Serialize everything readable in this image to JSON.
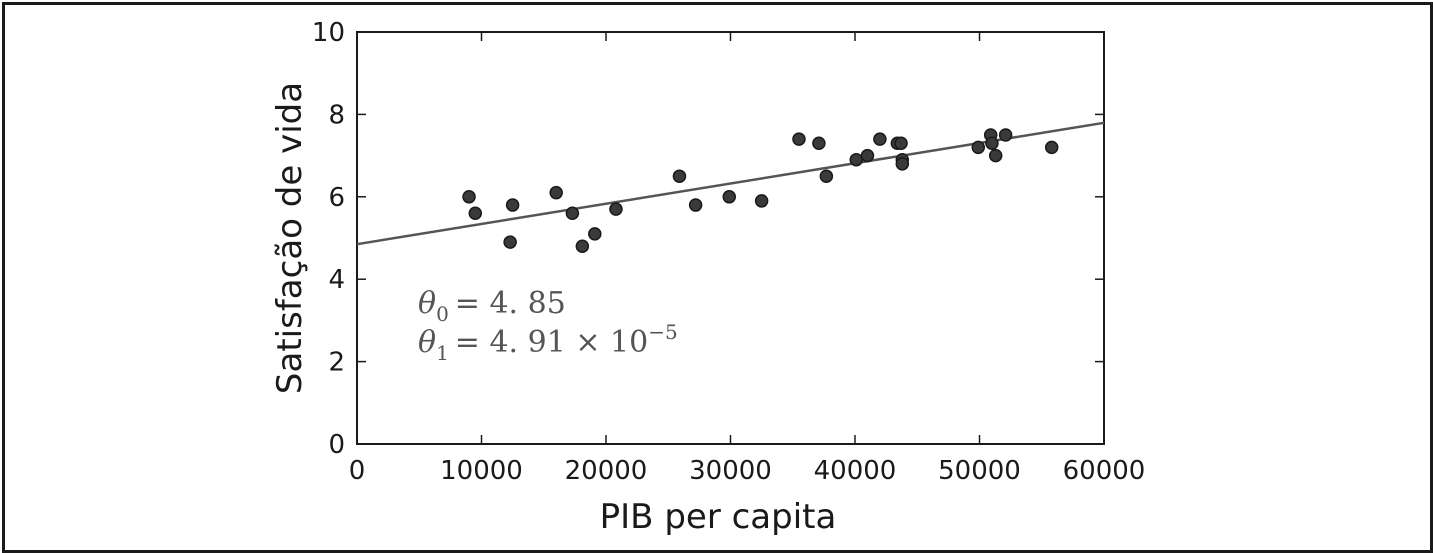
{
  "chart_data": {
    "type": "scatter",
    "xlabel": "PIB per capita",
    "ylabel": "Satisfação de vida",
    "xlim": [
      0,
      60000
    ],
    "ylim": [
      0,
      10
    ],
    "x_ticks": [
      "0",
      "10000",
      "20000",
      "30000",
      "40000",
      "50000",
      "60000"
    ],
    "y_ticks": [
      "0",
      "2",
      "4",
      "6",
      "8",
      "10"
    ],
    "grid": false,
    "points": [
      {
        "x": 9000,
        "y": 6.0
      },
      {
        "x": 9500,
        "y": 5.6
      },
      {
        "x": 12300,
        "y": 4.9
      },
      {
        "x": 12500,
        "y": 5.8
      },
      {
        "x": 16000,
        "y": 6.1
      },
      {
        "x": 17300,
        "y": 5.6
      },
      {
        "x": 18100,
        "y": 4.8
      },
      {
        "x": 19100,
        "y": 5.1
      },
      {
        "x": 20800,
        "y": 5.7
      },
      {
        "x": 25900,
        "y": 6.5
      },
      {
        "x": 27200,
        "y": 5.8
      },
      {
        "x": 29900,
        "y": 6.0
      },
      {
        "x": 32500,
        "y": 5.9
      },
      {
        "x": 35500,
        "y": 7.4
      },
      {
        "x": 37100,
        "y": 7.3
      },
      {
        "x": 37700,
        "y": 6.5
      },
      {
        "x": 40100,
        "y": 6.9
      },
      {
        "x": 41000,
        "y": 7.0
      },
      {
        "x": 42000,
        "y": 7.4
      },
      {
        "x": 43400,
        "y": 7.3
      },
      {
        "x": 43700,
        "y": 7.3
      },
      {
        "x": 43800,
        "y": 6.9
      },
      {
        "x": 43800,
        "y": 6.8
      },
      {
        "x": 49900,
        "y": 7.2
      },
      {
        "x": 50900,
        "y": 7.5
      },
      {
        "x": 51000,
        "y": 7.3
      },
      {
        "x": 51300,
        "y": 7.0
      },
      {
        "x": 52100,
        "y": 7.5
      },
      {
        "x": 55800,
        "y": 7.2
      }
    ],
    "fit_line": {
      "intercept": 4.85,
      "slope": 4.91e-05
    },
    "annotation": {
      "theta0_symbol": "θ",
      "theta0_subscript": "0",
      "theta0_value": "= 4. 85",
      "theta1_symbol": "θ",
      "theta1_subscript": "1",
      "theta1_value": "= 4. 91 × 10",
      "theta1_exponent": "−5"
    },
    "colors": {
      "points": "#3a3a3a",
      "line": "#555555",
      "axes": "#1a1a1a"
    }
  }
}
